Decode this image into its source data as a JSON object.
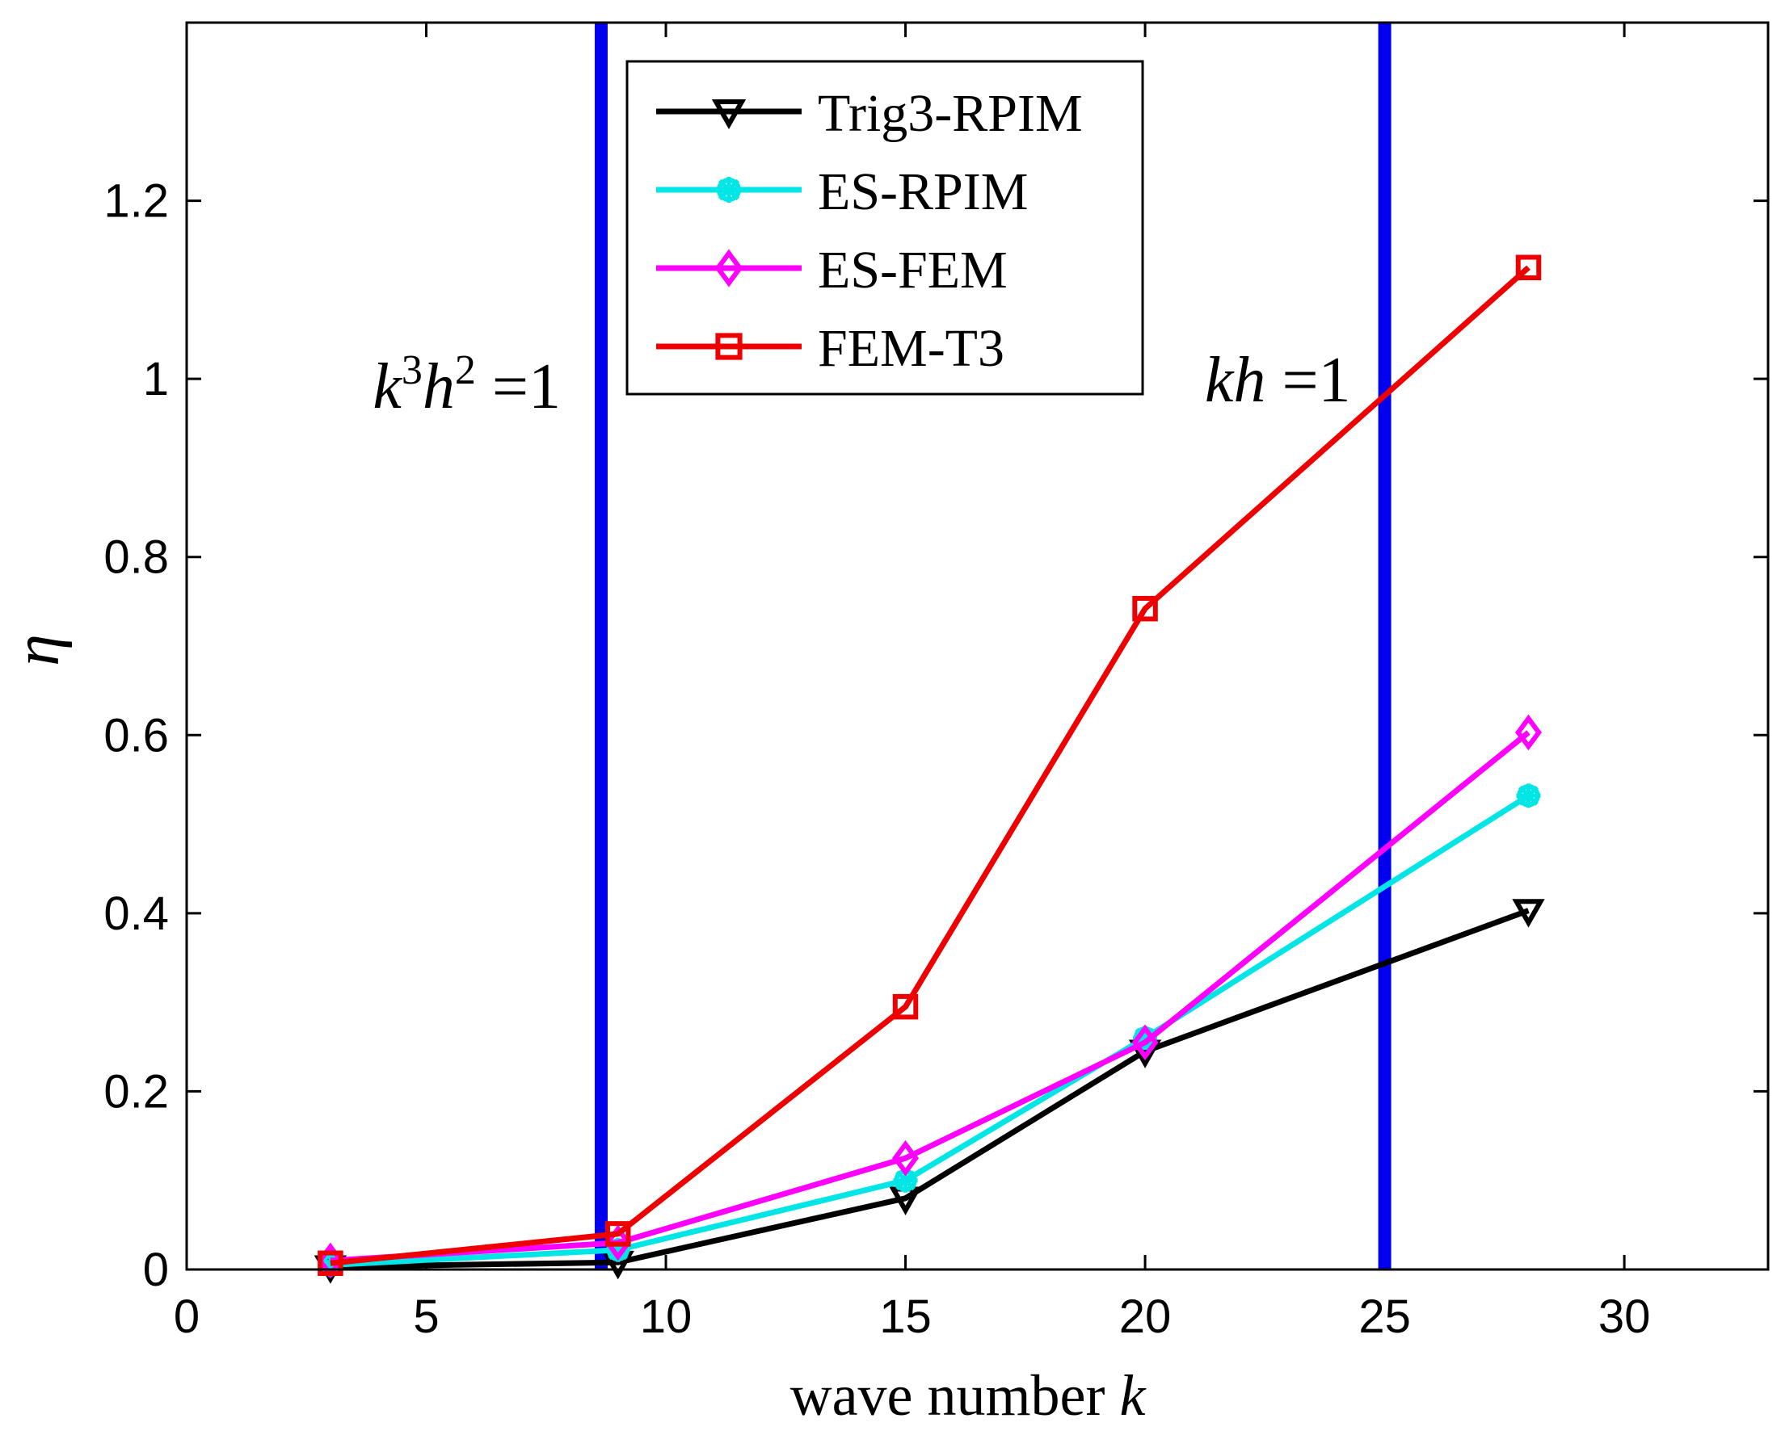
{
  "chart_data": {
    "type": "line",
    "title": "",
    "xlabel": "wave number",
    "xlabel_italic": "k",
    "ylabel": "η",
    "xlim": [
      0,
      33
    ],
    "ylim": [
      0,
      1.4
    ],
    "xticks": [
      0,
      5,
      10,
      15,
      20,
      25,
      30
    ],
    "xtick_labels": [
      "0",
      "5",
      "10",
      "15",
      "20",
      "25",
      "30"
    ],
    "yticks": [
      0,
      0.2,
      0.4,
      0.6,
      0.8,
      1.0,
      1.2
    ],
    "ytick_labels": [
      "0",
      "0.2",
      "0.4",
      "0.6",
      "0.8",
      "1",
      "1.2"
    ],
    "grid": false,
    "legend_position": "top-center",
    "x": [
      3,
      9,
      15,
      20,
      28
    ],
    "series": [
      {
        "name": "Trig3-RPIM",
        "color": "#000000",
        "marker": "triangle-down",
        "values": [
          0.003,
          0.008,
          0.08,
          0.245,
          0.403
        ]
      },
      {
        "name": "ES-RPIM",
        "color": "#00e5e5",
        "marker": "asterisk",
        "values": [
          0.005,
          0.022,
          0.1,
          0.26,
          0.532
        ]
      },
      {
        "name": "ES-FEM",
        "color": "#ff00ff",
        "marker": "diamond",
        "values": [
          0.01,
          0.03,
          0.125,
          0.255,
          0.603
        ]
      },
      {
        "name": "FEM-T3",
        "color": "#ee0000",
        "marker": "square",
        "values": [
          0.007,
          0.04,
          0.295,
          0.742,
          1.125
        ]
      }
    ],
    "vertical_lines": [
      {
        "x": 8.65,
        "color": "#0000ee",
        "label": "k³h² =1"
      },
      {
        "x": 25,
        "color": "#0000ee",
        "label": "kh =1"
      }
    ]
  }
}
